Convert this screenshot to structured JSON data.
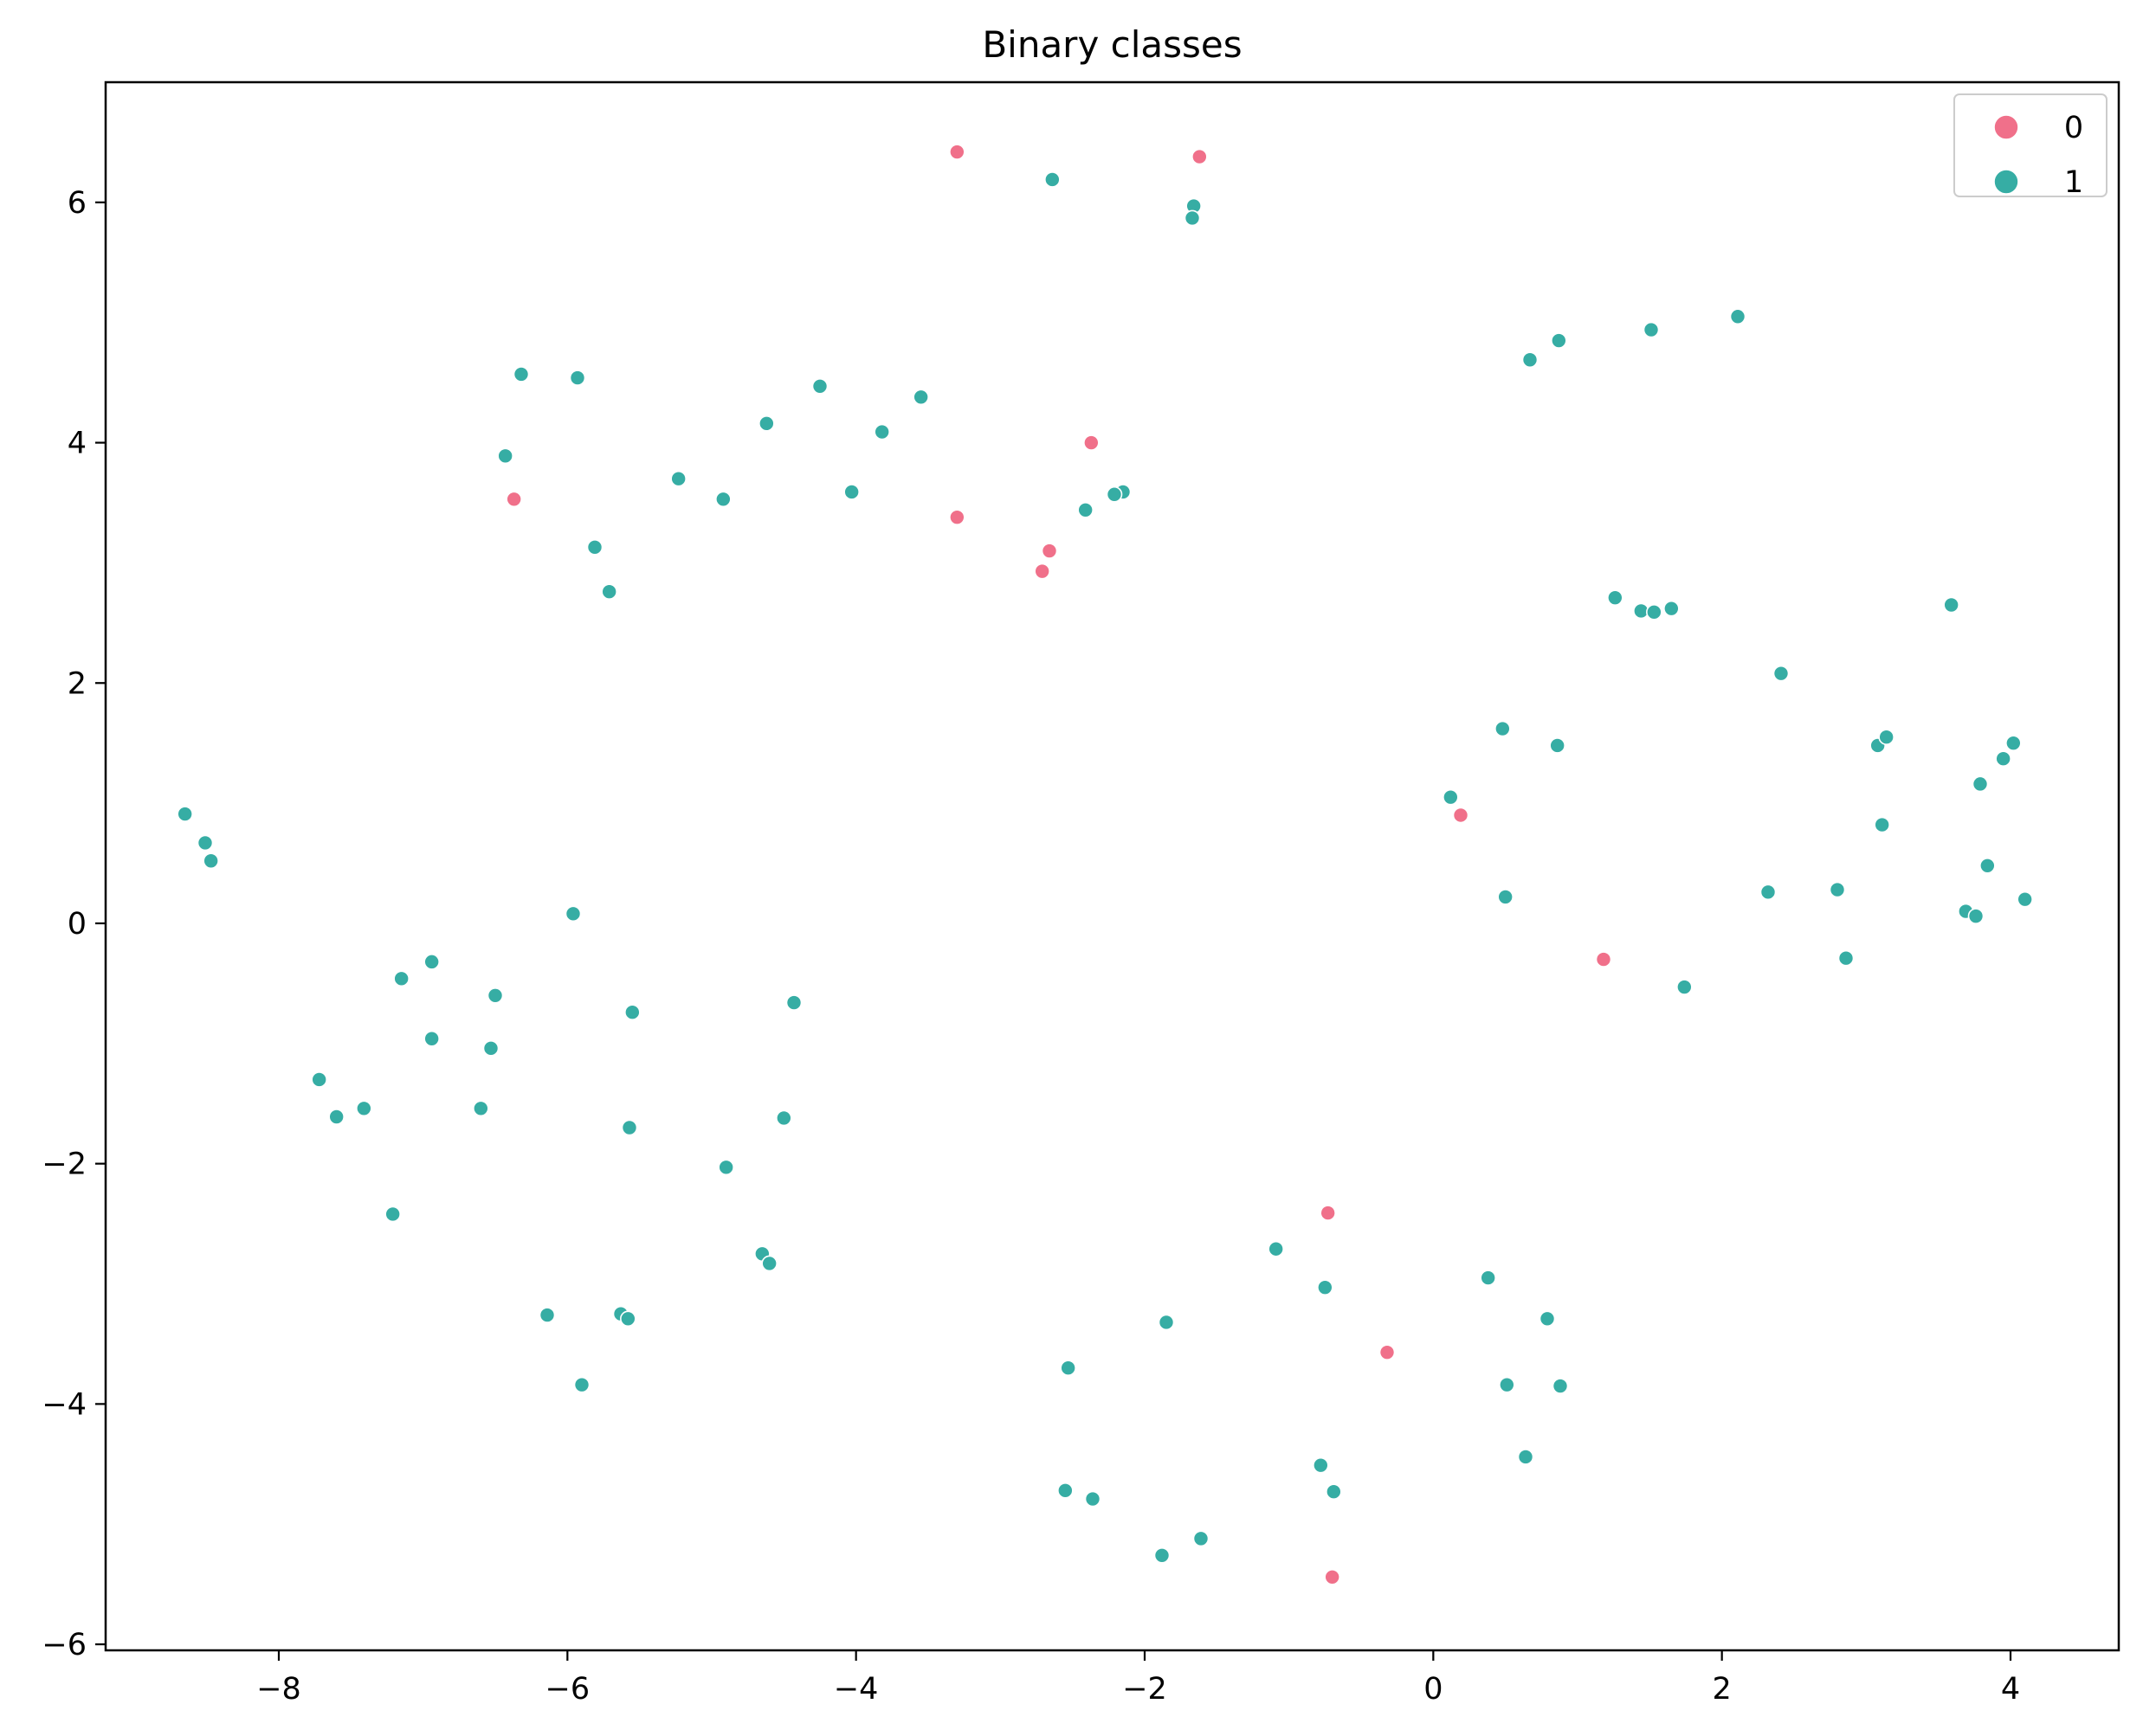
{
  "chart_data": {
    "type": "scatter",
    "title": "Binary classes",
    "xlabel": "",
    "ylabel": "",
    "xlim": [
      -9.2,
      4.75
    ],
    "ylim": [
      -6.05,
      7.0
    ],
    "xticks": [
      -8,
      -6,
      -4,
      -2,
      0,
      2,
      4
    ],
    "yticks": [
      -6,
      -4,
      -2,
      0,
      2,
      4,
      6
    ],
    "xtick_labels": [
      "−8",
      "−6",
      "−4",
      "−2",
      "0",
      "2",
      "4"
    ],
    "ytick_labels": [
      "−6",
      "−4",
      "−2",
      "0",
      "2",
      "4",
      "6"
    ],
    "grid": false,
    "legend_position": "top-right",
    "series": [
      {
        "name": "0",
        "color": "#f0708a",
        "points": [
          [
            -3.3,
            6.42
          ],
          [
            -1.62,
            6.38
          ],
          [
            -6.37,
            3.53
          ],
          [
            -2.37,
            4.0
          ],
          [
            -3.3,
            3.38
          ],
          [
            -2.66,
            3.1
          ],
          [
            -2.71,
            2.93
          ],
          [
            0.19,
            0.9
          ],
          [
            1.18,
            -0.3
          ],
          [
            -0.73,
            -2.41
          ],
          [
            -0.32,
            -3.57
          ],
          [
            -0.7,
            -5.44
          ]
        ]
      },
      {
        "name": "1",
        "color": "#36ada4",
        "points": [
          [
            -2.64,
            6.19
          ],
          [
            -1.66,
            5.97
          ],
          [
            -1.67,
            5.87
          ],
          [
            -6.32,
            4.57
          ],
          [
            -5.93,
            4.54
          ],
          [
            -4.25,
            4.47
          ],
          [
            -3.55,
            4.38
          ],
          [
            -4.62,
            4.16
          ],
          [
            -3.82,
            4.09
          ],
          [
            -6.43,
            3.89
          ],
          [
            -5.23,
            3.7
          ],
          [
            -4.03,
            3.59
          ],
          [
            -4.92,
            3.53
          ],
          [
            -2.15,
            3.59
          ],
          [
            -2.21,
            3.57
          ],
          [
            -2.41,
            3.44
          ],
          [
            -5.81,
            3.13
          ],
          [
            -5.71,
            2.76
          ],
          [
            0.67,
            4.69
          ],
          [
            0.87,
            4.85
          ],
          [
            1.51,
            4.94
          ],
          [
            2.11,
            5.05
          ],
          [
            1.26,
            2.71
          ],
          [
            1.44,
            2.6
          ],
          [
            1.53,
            2.59
          ],
          [
            1.65,
            2.62
          ],
          [
            2.41,
            2.08
          ],
          [
            3.59,
            2.65
          ],
          [
            0.48,
            1.62
          ],
          [
            0.86,
            1.48
          ],
          [
            0.12,
            1.05
          ],
          [
            3.08,
            1.48
          ],
          [
            3.14,
            1.55
          ],
          [
            4.02,
            1.5
          ],
          [
            3.95,
            1.37
          ],
          [
            3.79,
            1.16
          ],
          [
            3.11,
            0.82
          ],
          [
            3.84,
            0.48
          ],
          [
            0.5,
            0.22
          ],
          [
            2.32,
            0.26
          ],
          [
            2.8,
            0.28
          ],
          [
            3.69,
            0.1
          ],
          [
            3.76,
            0.06
          ],
          [
            4.1,
            0.2
          ],
          [
            2.86,
            -0.29
          ],
          [
            1.74,
            -0.53
          ],
          [
            -8.65,
            0.91
          ],
          [
            -8.51,
            0.67
          ],
          [
            -8.47,
            0.52
          ],
          [
            -5.96,
            0.08
          ],
          [
            -6.94,
            -0.32
          ],
          [
            -7.15,
            -0.46
          ],
          [
            -6.5,
            -0.6
          ],
          [
            -5.55,
            -0.74
          ],
          [
            -4.43,
            -0.66
          ],
          [
            -6.94,
            -0.96
          ],
          [
            -6.53,
            -1.04
          ],
          [
            -7.72,
            -1.3
          ],
          [
            -7.6,
            -1.61
          ],
          [
            -7.41,
            -1.54
          ],
          [
            -6.6,
            -1.54
          ],
          [
            -5.57,
            -1.7
          ],
          [
            -4.5,
            -1.62
          ],
          [
            -4.9,
            -2.03
          ],
          [
            -7.21,
            -2.42
          ],
          [
            -4.65,
            -2.75
          ],
          [
            -4.6,
            -2.83
          ],
          [
            -6.14,
            -3.26
          ],
          [
            -5.63,
            -3.25
          ],
          [
            -5.58,
            -3.29
          ],
          [
            -5.9,
            -3.84
          ],
          [
            -1.09,
            -2.71
          ],
          [
            -0.75,
            -3.03
          ],
          [
            0.38,
            -2.95
          ],
          [
            -1.85,
            -3.32
          ],
          [
            0.79,
            -3.29
          ],
          [
            -2.53,
            -3.7
          ],
          [
            0.51,
            -3.84
          ],
          [
            0.88,
            -3.85
          ],
          [
            0.64,
            -4.44
          ],
          [
            -0.78,
            -4.51
          ],
          [
            -0.69,
            -4.73
          ],
          [
            -2.55,
            -4.72
          ],
          [
            -2.36,
            -4.79
          ],
          [
            -1.61,
            -5.12
          ],
          [
            -1.88,
            -5.26
          ]
        ]
      }
    ]
  }
}
